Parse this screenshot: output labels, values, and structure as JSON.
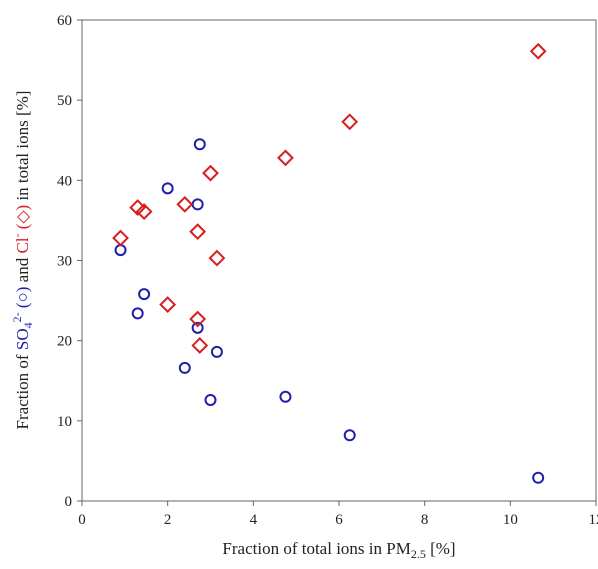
{
  "chart_data": {
    "type": "scatter",
    "xlabel": {
      "main": "Fraction of total ions in PM",
      "sub": "2.5",
      "unit": " [%]"
    },
    "ylabel": {
      "prefix": "Fraction of ",
      "so4": "SO",
      "so4_sub": "4",
      "so4_sup": "2-",
      "so4_marker": " (○)",
      "and": " and ",
      "cl": "Cl",
      "cl_sup": "-",
      "cl_marker": " (◇)",
      "suffix": " in total ions [%]"
    },
    "xlim": [
      0,
      12
    ],
    "ylim": [
      0,
      60
    ],
    "xticks": [
      "0",
      "2",
      "4",
      "6",
      "8",
      "10",
      "12"
    ],
    "yticks": [
      "0",
      "10",
      "20",
      "30",
      "40",
      "50",
      "60"
    ],
    "grid": false,
    "legend": "none",
    "series": [
      {
        "marker": "circle",
        "color": "#1f1fa8",
        "points": [
          {
            "x": 0.9,
            "y": 31.3
          },
          {
            "x": 1.3,
            "y": 23.4
          },
          {
            "x": 1.45,
            "y": 25.8
          },
          {
            "x": 2.0,
            "y": 39.0
          },
          {
            "x": 2.4,
            "y": 16.6
          },
          {
            "x": 2.7,
            "y": 37.0
          },
          {
            "x": 2.75,
            "y": 44.5
          },
          {
            "x": 2.7,
            "y": 21.6
          },
          {
            "x": 3.0,
            "y": 12.6
          },
          {
            "x": 3.15,
            "y": 18.6
          },
          {
            "x": 4.75,
            "y": 13.0
          },
          {
            "x": 6.25,
            "y": 8.2
          },
          {
            "x": 10.65,
            "y": 2.9
          }
        ]
      },
      {
        "marker": "diamond",
        "color": "#d81e1e",
        "points": [
          {
            "x": 0.9,
            "y": 32.8
          },
          {
            "x": 1.3,
            "y": 36.6
          },
          {
            "x": 1.45,
            "y": 36.1
          },
          {
            "x": 2.0,
            "y": 24.5
          },
          {
            "x": 2.4,
            "y": 37.0
          },
          {
            "x": 2.7,
            "y": 33.6
          },
          {
            "x": 2.7,
            "y": 22.7
          },
          {
            "x": 2.75,
            "y": 19.4
          },
          {
            "x": 3.0,
            "y": 40.9
          },
          {
            "x": 3.15,
            "y": 30.3
          },
          {
            "x": 4.75,
            "y": 42.8
          },
          {
            "x": 6.25,
            "y": 47.3
          },
          {
            "x": 10.65,
            "y": 56.1
          }
        ]
      }
    ]
  }
}
